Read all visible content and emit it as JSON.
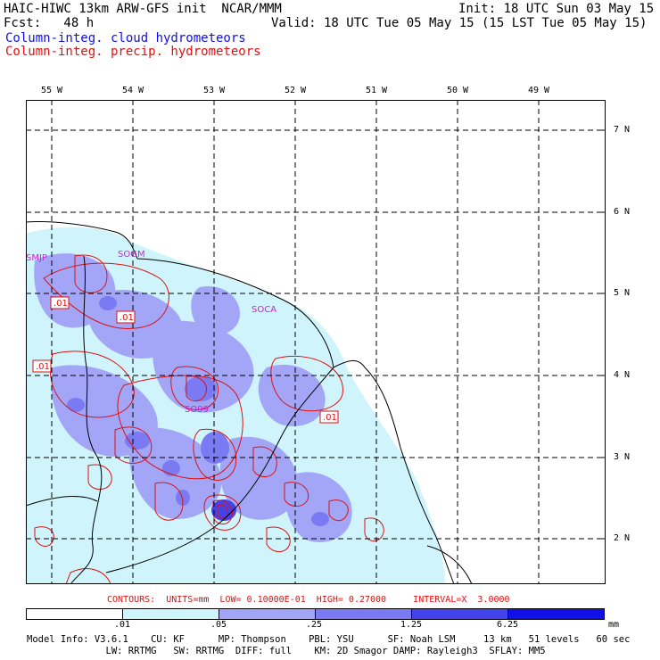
{
  "header": {
    "left_line1": "HAIC-HIWC 13km ARW-GFS init  NCAR/MMM",
    "left_line2": "Fcst:   48 h",
    "init": "Init: 18 UTC Sun 03 May 15",
    "valid": "Valid: 18 UTC Tue 05 May 15 (15 LST Tue 05 May 15)",
    "field_blue": "Column-integ. cloud hydrometeors",
    "field_red": "Column-integ. precip. hydrometeors"
  },
  "map": {
    "lon_labels": [
      "55 W",
      "54 W",
      "53 W",
      "52 W",
      "51 W",
      "50 W",
      "49 W"
    ],
    "lat_labels": [
      "7 N",
      "6 N",
      "5 N",
      "4 N",
      "3 N",
      "2 N"
    ],
    "stations": [
      "SMJP",
      "SOGM",
      "SOCA",
      "SO99"
    ],
    "contour_labels": [
      ".01",
      ".01",
      ".01",
      ".01"
    ]
  },
  "contours_line": "CONTOURS:  UNITS=mm  LOW= 0.10000E-01  HIGH= 0.27000     INTERVAL=X  3.0000",
  "colorbar": {
    "levels": [
      ".01",
      ".05",
      ".25",
      "1.25",
      "6.25"
    ],
    "unit": "mm",
    "colors": [
      "#ffffff",
      "#cff4fc",
      "#a3a6f7",
      "#7a7af3",
      "#4343ee",
      "#1010e8"
    ]
  },
  "footer": {
    "line1": "Model Info: V3.6.1    CU: KF      MP: Thompson    PBL: YSU      SF: Noah LSM     13 km   51 levels   60 sec",
    "line2": "              LW: RRTMG   SW: RRTMG  DIFF: full    KM: 2D Smagor DAMP: Rayleigh3  SFLAY: MM5"
  },
  "colors": {
    "cloud": "#1010e0",
    "precip": "#e01010"
  }
}
